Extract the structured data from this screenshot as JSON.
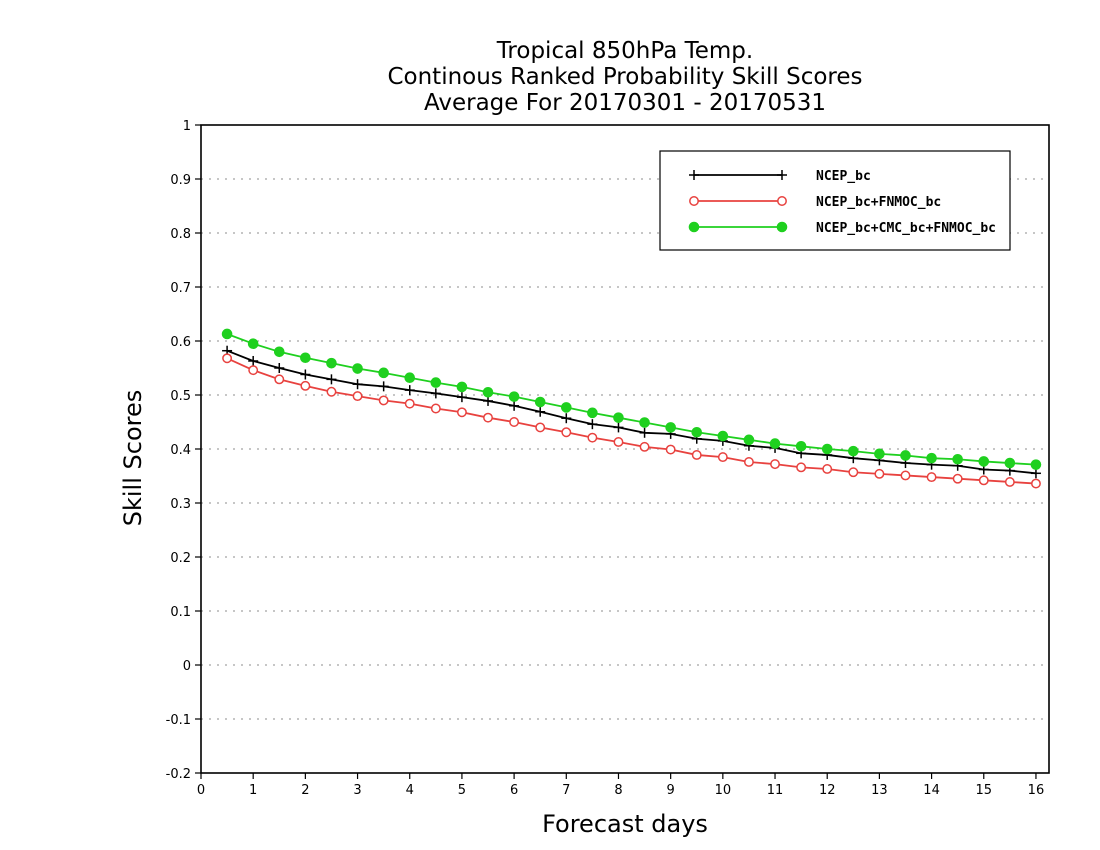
{
  "chart_data": {
    "type": "line",
    "title": [
      "Tropical 850hPa Temp.",
      "Continous Ranked Probability Skill Scores",
      "Average For 20170301 - 20170531"
    ],
    "xlabel": "Forecast days",
    "ylabel": "Skill Scores",
    "xlim": [
      0,
      16.25
    ],
    "ylim": [
      -0.2,
      1
    ],
    "xticks": [
      0,
      1,
      2,
      3,
      4,
      5,
      6,
      7,
      8,
      9,
      10,
      11,
      12,
      13,
      14,
      15,
      16
    ],
    "yticks": [
      -0.2,
      -0.1,
      0,
      0.1,
      0.2,
      0.3,
      0.4,
      0.5,
      0.6,
      0.7,
      0.8,
      0.9,
      1
    ],
    "ytick_labels": [
      "-0.2",
      "-0.1",
      "0",
      "0.1",
      "0.2",
      "0.3",
      "0.4",
      "0.5",
      "0.6",
      "0.7",
      "0.8",
      "0.9",
      "1"
    ],
    "grid": "horizontal dotted",
    "legend_position": "top-right",
    "x": [
      0.5,
      1,
      1.5,
      2,
      2.5,
      3,
      3.5,
      4,
      4.5,
      5,
      5.5,
      6,
      6.5,
      7,
      7.5,
      8,
      8.5,
      9,
      9.5,
      10,
      10.5,
      11,
      11.5,
      12,
      12.5,
      13,
      13.5,
      14,
      14.5,
      15,
      15.5,
      16
    ],
    "series": [
      {
        "name": "NCEP_bc",
        "color": "#000000",
        "marker": "plus",
        "values": [
          0.582,
          0.563,
          0.55,
          0.538,
          0.529,
          0.52,
          0.516,
          0.509,
          0.503,
          0.496,
          0.489,
          0.48,
          0.469,
          0.457,
          0.446,
          0.44,
          0.43,
          0.428,
          0.419,
          0.415,
          0.406,
          0.402,
          0.392,
          0.389,
          0.383,
          0.379,
          0.374,
          0.371,
          0.369,
          0.362,
          0.36,
          0.355
        ]
      },
      {
        "name": "NCEP_bc+FNMOC_bc",
        "color": "#e8423f",
        "marker": "open-circle",
        "values": [
          0.568,
          0.546,
          0.529,
          0.517,
          0.506,
          0.498,
          0.49,
          0.484,
          0.475,
          0.468,
          0.458,
          0.45,
          0.44,
          0.431,
          0.421,
          0.413,
          0.404,
          0.399,
          0.389,
          0.385,
          0.376,
          0.372,
          0.366,
          0.363,
          0.357,
          0.354,
          0.351,
          0.348,
          0.345,
          0.342,
          0.339,
          0.336
        ]
      },
      {
        "name": "NCEP_bc+CMC_bc+FNMOC_bc",
        "color": "#1fd01f",
        "marker": "filled-circle",
        "values": [
          0.613,
          0.595,
          0.58,
          0.569,
          0.559,
          0.549,
          0.541,
          0.532,
          0.523,
          0.515,
          0.505,
          0.497,
          0.487,
          0.477,
          0.467,
          0.458,
          0.449,
          0.44,
          0.431,
          0.424,
          0.417,
          0.41,
          0.405,
          0.4,
          0.396,
          0.391,
          0.388,
          0.383,
          0.381,
          0.377,
          0.374,
          0.371
        ]
      }
    ]
  }
}
